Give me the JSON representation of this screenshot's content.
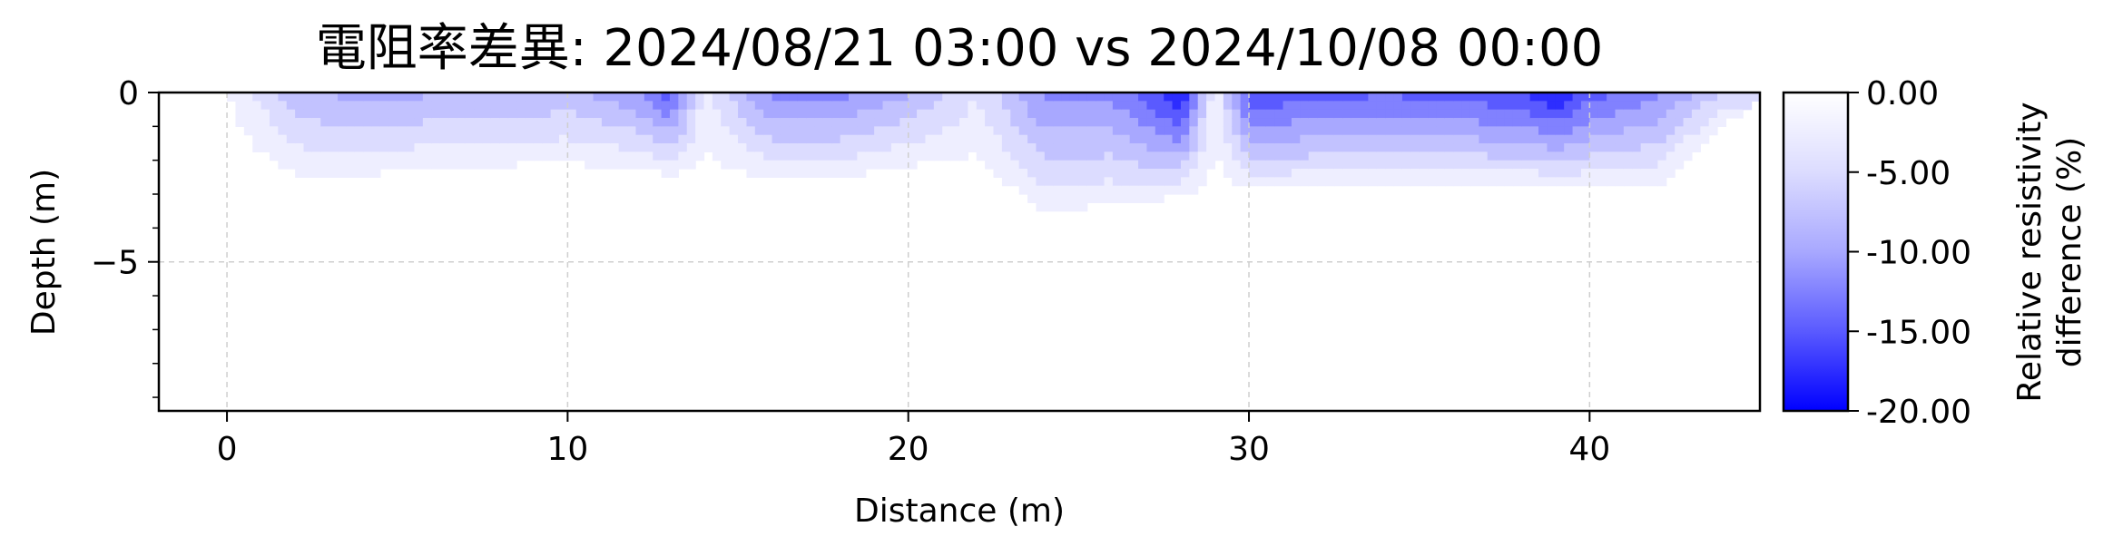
{
  "chart_data": {
    "type": "heatmap",
    "title": "電阻率差異: 2024/08/21 03:00 vs 2024/10/08 00:00",
    "xlabel": "Distance (m)",
    "ylabel": "Depth (m)",
    "xlim": [
      -2,
      45
    ],
    "ylim": [
      -9.4,
      0
    ],
    "x_ticks": [
      0,
      10,
      20,
      30,
      40
    ],
    "x_tick_labels": [
      "0",
      "10",
      "20",
      "30",
      "40"
    ],
    "y_ticks": [
      0,
      -5
    ],
    "y_tick_labels": [
      "0",
      "−5"
    ],
    "grid": true,
    "colorbar": {
      "label_line1": "Relative resistivity",
      "label_line2": "difference (%)",
      "range": [
        -20,
        0
      ],
      "ticks": [
        0,
        -5,
        -10,
        -15,
        -20
      ],
      "tick_labels": [
        "0.00",
        "-5.00",
        "-10.00",
        "-15.00",
        "-20.00"
      ],
      "color_at_0": "#ffffff",
      "color_at_min": "#0000ff"
    },
    "levels": [
      -2.5,
      -5,
      -7.5,
      -10,
      -12.5,
      -15,
      -17.5
    ],
    "field_samples": {
      "x": [
        -2,
        0,
        2,
        4,
        6,
        8,
        10,
        12,
        13,
        14,
        16,
        18,
        20,
        22,
        24,
        26,
        28,
        29,
        30,
        32,
        34,
        36,
        38,
        39,
        40,
        42,
        44
      ],
      "min_values_near_surface": [
        0,
        -1,
        -8,
        -10,
        -9,
        -9,
        -8,
        -11,
        -15,
        -3,
        -12,
        -12,
        -9,
        -4,
        -12,
        -12,
        -19,
        -2,
        -16,
        -15,
        -14,
        -15,
        -16,
        -19,
        -15,
        -12,
        -6
      ],
      "penetration_depth": [
        0.5,
        1.8,
        2.8,
        2.7,
        2.5,
        2.4,
        2.4,
        2.4,
        2.6,
        2.6,
        2.8,
        2.7,
        2.4,
        2.5,
        3.8,
        3.6,
        3.2,
        3.0,
        3.0,
        3.0,
        3.0,
        3.0,
        2.9,
        2.9,
        3.0,
        3.0,
        1.0
      ]
    },
    "surface_right_edge": {
      "x": [
        41.5,
        45
      ],
      "depth": [
        3.2,
        0
      ]
    }
  }
}
